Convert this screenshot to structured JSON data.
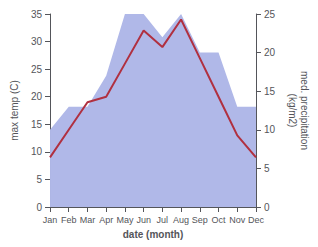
{
  "chart_data": {
    "type": "line",
    "categories": [
      "Jan",
      "Feb",
      "Mar",
      "Apr",
      "May",
      "Jun",
      "Jul",
      "Aug",
      "Sep",
      "Oct",
      "Nov",
      "Dec"
    ],
    "xlabel": "date (month)",
    "ylabel": "max temp (C)",
    "y2label": "med. precipitation\n(kg/m2)",
    "series": [
      {
        "type": "area",
        "color": "#b0b8e8",
        "axis": "y2",
        "values": [
          10,
          13,
          13,
          17,
          25,
          25,
          22,
          25,
          20,
          20,
          13,
          13
        ]
      },
      {
        "type": "line",
        "color": "#b03040",
        "values": [
          9,
          14,
          19,
          20,
          26,
          32,
          29,
          34,
          27,
          20,
          13,
          9
        ]
      }
    ],
    "ylim": [
      0,
      35
    ],
    "yticks": [
      0,
      5,
      10,
      15,
      20,
      25,
      30,
      35
    ],
    "y2lim": [
      0,
      25
    ],
    "y2ticks": [
      0,
      5,
      10,
      15,
      20,
      25
    ],
    "grid": false
  }
}
